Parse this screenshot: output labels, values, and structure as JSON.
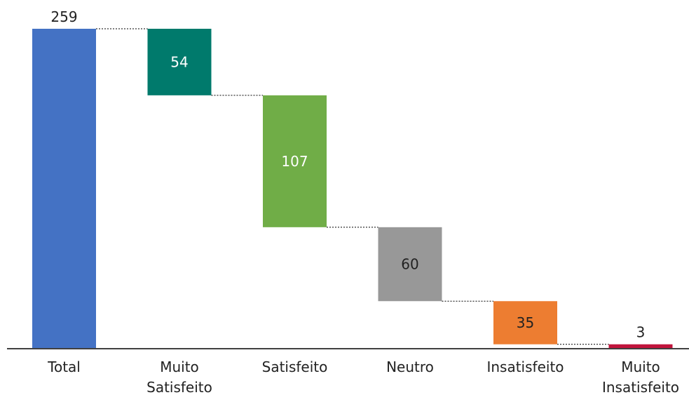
{
  "chart_data": {
    "type": "bar",
    "subtype": "waterfall",
    "title": "",
    "xlabel": "",
    "ylabel": "",
    "ylim": [
      0,
      259
    ],
    "grid": false,
    "legend": "none",
    "categories": [
      [
        "Total"
      ],
      [
        "Muito",
        "Satisfeito"
      ],
      [
        "Satisfeito"
      ],
      [
        "Neutro"
      ],
      [
        "Insatisfeito"
      ],
      [
        "Muito",
        "Insatisfeito"
      ]
    ],
    "values": [
      259,
      54,
      107,
      60,
      35,
      3
    ],
    "bars": [
      {
        "kind": "total",
        "start": 0,
        "end": 259,
        "color": "#4472C4",
        "label_color": "#222222",
        "label_position": "above"
      },
      {
        "kind": "delta",
        "start": 259,
        "end": 205,
        "color": "#007A6C",
        "label_color": "#ffffff",
        "label_position": "inside"
      },
      {
        "kind": "delta",
        "start": 205,
        "end": 98,
        "color": "#70AD47",
        "label_color": "#ffffff",
        "label_position": "inside"
      },
      {
        "kind": "delta",
        "start": 98,
        "end": 38,
        "color": "#989898",
        "label_color": "#222222",
        "label_position": "inside"
      },
      {
        "kind": "delta",
        "start": 38,
        "end": 3,
        "color": "#ED7D31",
        "label_color": "#222222",
        "label_position": "inside"
      },
      {
        "kind": "delta",
        "start": 3,
        "end": 0,
        "color": "#C0143C",
        "label_color": "#222222",
        "label_position": "above"
      }
    ]
  }
}
